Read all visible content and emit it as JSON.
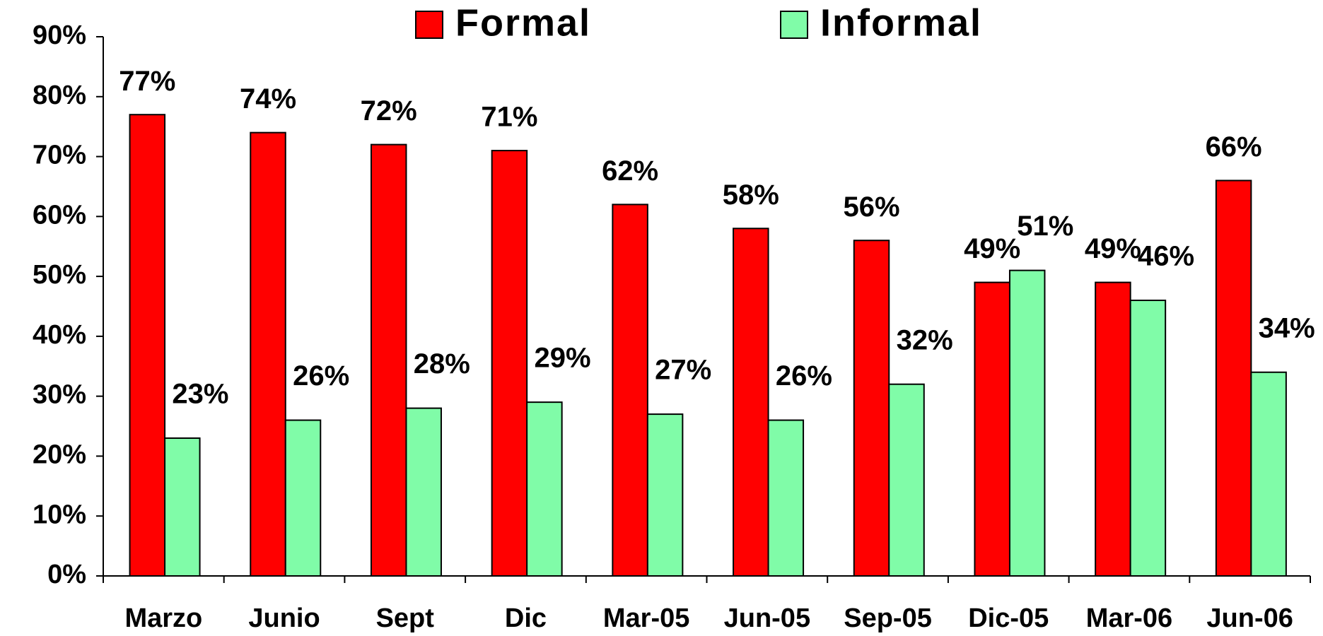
{
  "chart_data": {
    "type": "bar",
    "categories": [
      "Marzo",
      "Junio",
      "Sept",
      "Dic",
      "Mar-05",
      "Jun-05",
      "Sep-05",
      "Dic-05",
      "Mar-06",
      "Jun-06"
    ],
    "series": [
      {
        "name": "Formal",
        "color": "#ff0000",
        "values": [
          77,
          74,
          72,
          71,
          62,
          58,
          56,
          49,
          49,
          66
        ],
        "value_labels": [
          "77%",
          "74%",
          "72%",
          "71%",
          "62%",
          "58%",
          "56%",
          "49%",
          "49%",
          "66%"
        ]
      },
      {
        "name": "Informal",
        "color": "#80fca8",
        "values": [
          23,
          26,
          28,
          29,
          27,
          26,
          32,
          51,
          46,
          34
        ],
        "value_labels": [
          "23%",
          "26%",
          "28%",
          "29%",
          "27%",
          "26%",
          "32%",
          "51%",
          "46%",
          "34%"
        ]
      }
    ],
    "ylim": [
      0,
      90
    ],
    "yticks": [
      {
        "value": 0,
        "label": "0%"
      },
      {
        "value": 10,
        "label": "10%"
      },
      {
        "value": 20,
        "label": "20%"
      },
      {
        "value": 30,
        "label": "30%"
      },
      {
        "value": 40,
        "label": "40%"
      },
      {
        "value": 50,
        "label": "50%"
      },
      {
        "value": 60,
        "label": "60%"
      },
      {
        "value": 70,
        "label": "70%"
      },
      {
        "value": 80,
        "label": "80%"
      },
      {
        "value": 90,
        "label": "90%"
      }
    ],
    "legend": "top"
  }
}
